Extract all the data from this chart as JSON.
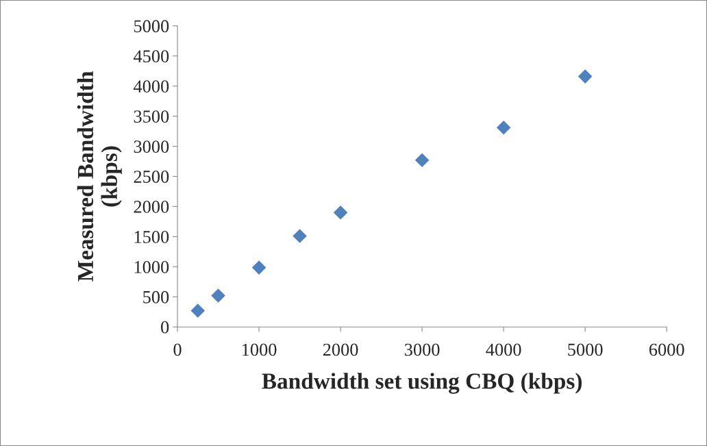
{
  "chart_data": {
    "type": "scatter",
    "xlabel": "Bandwidth set using CBQ (kbps)",
    "ylabel": "Measured Bandwidth\n(kbps)",
    "x": [
      250,
      500,
      1000,
      1500,
      2000,
      3000,
      4000,
      5000
    ],
    "series": [
      {
        "color": "#4f81bd",
        "values": [
          270,
          520,
          985,
          1510,
          1900,
          2770,
          3310,
          4160
        ]
      }
    ],
    "xlim": [
      0,
      6000
    ],
    "xticks": [
      0,
      1000,
      2000,
      3000,
      4000,
      5000,
      6000
    ],
    "ylim": [
      0,
      5000
    ],
    "yticks": [
      0,
      500,
      1000,
      1500,
      2000,
      2500,
      3000,
      3500,
      4000,
      4500,
      5000
    ],
    "marker": "diamond",
    "grid": false,
    "legend": false
  }
}
